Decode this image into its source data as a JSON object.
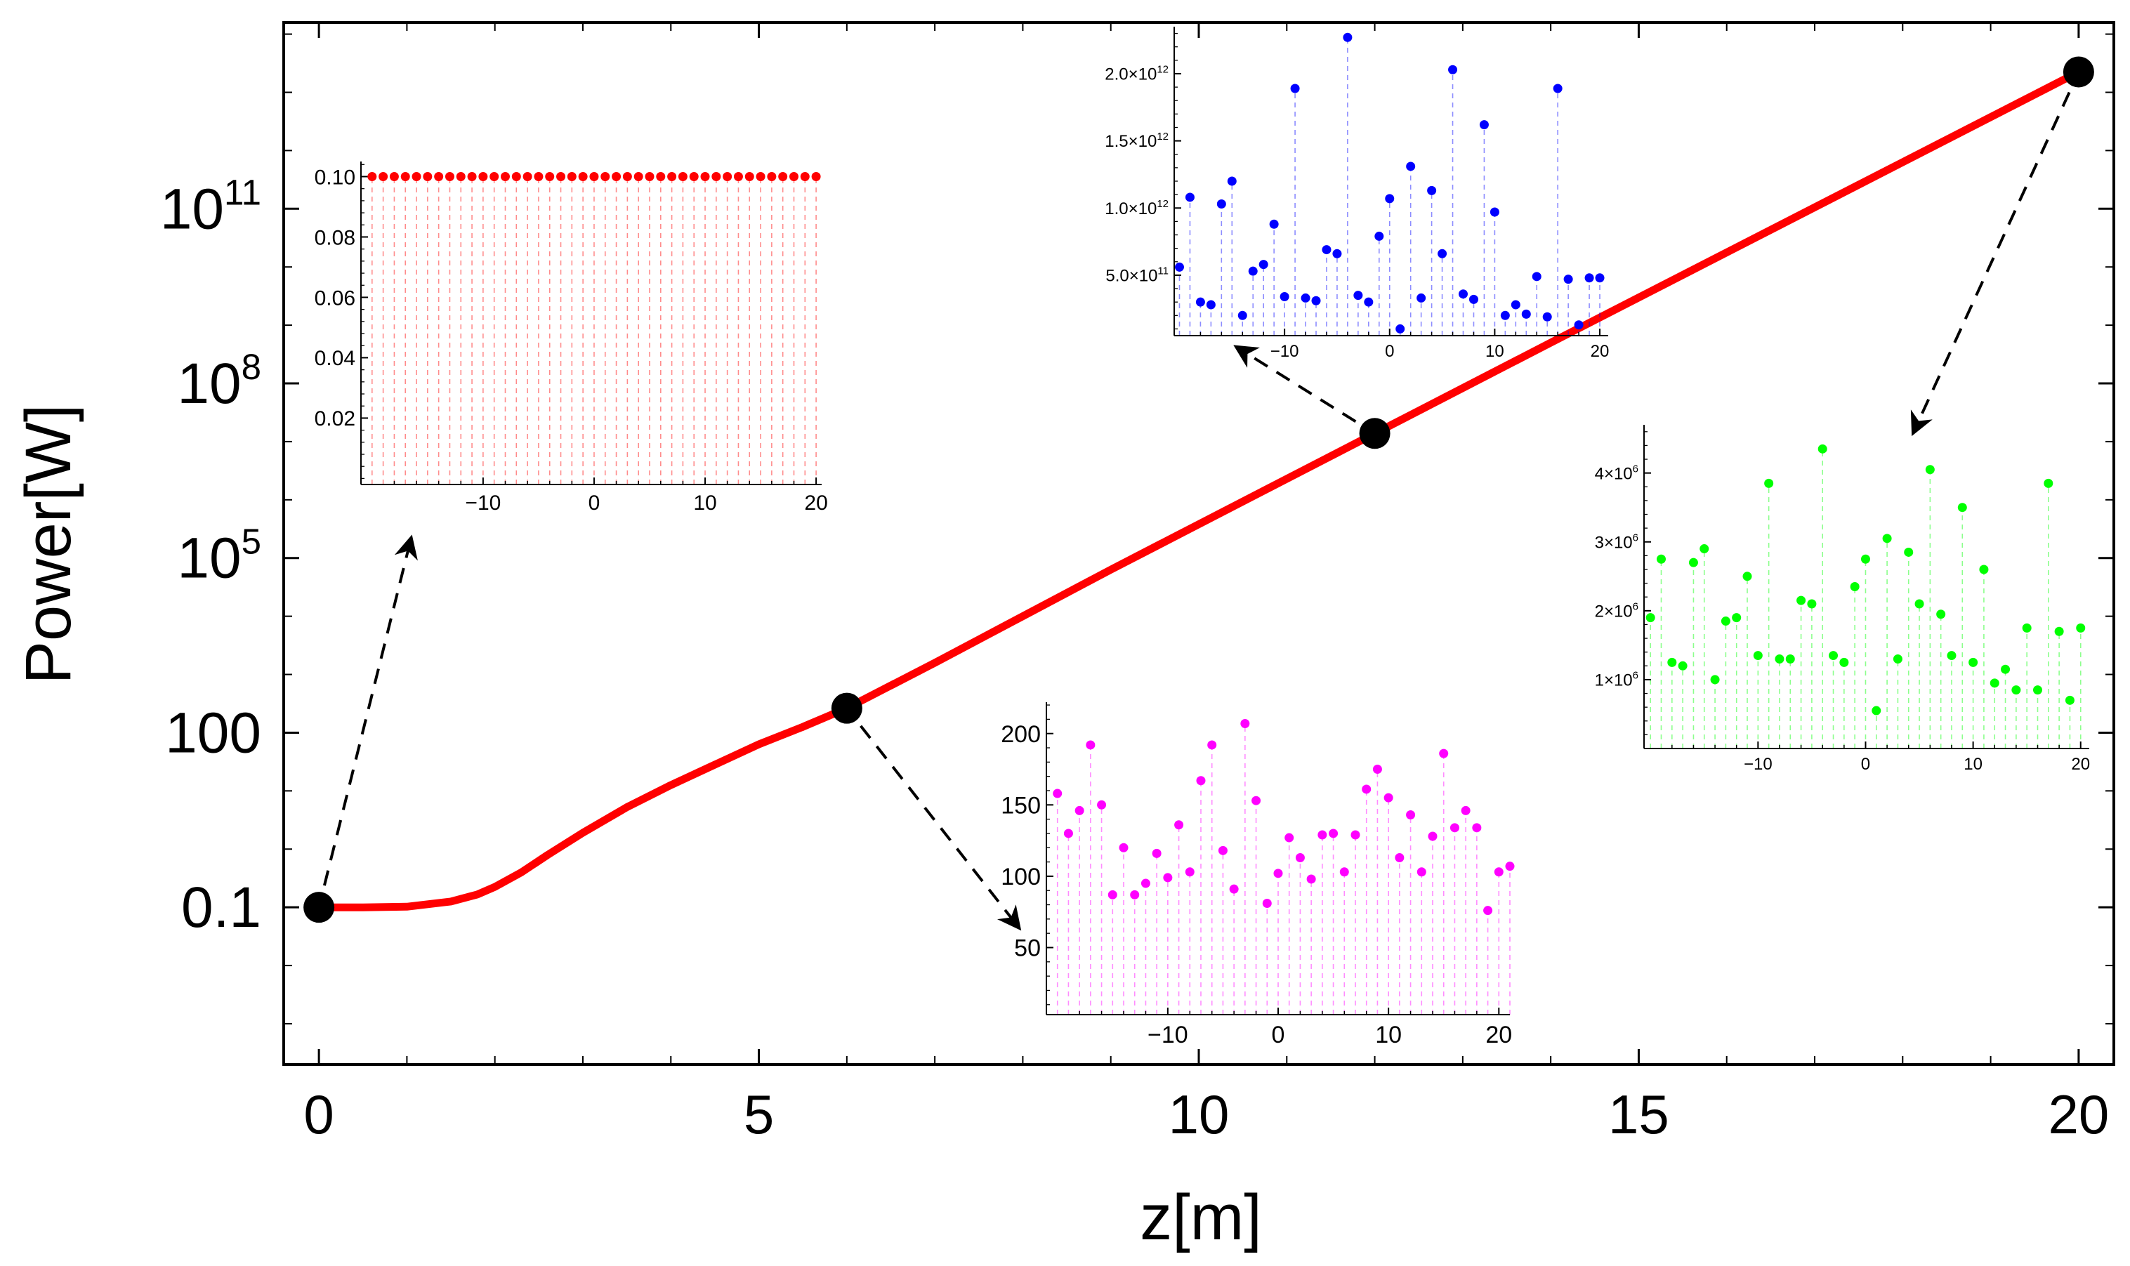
{
  "chart_data": [
    {
      "id": "main",
      "type": "line",
      "xlabel": "z[m]",
      "ylabel": "Power[W]",
      "xlim": [
        -0.4,
        20.4
      ],
      "ylim_log10": [
        -3.7,
        14.2
      ],
      "y_scale": "log",
      "x_ticks": [
        0,
        5,
        10,
        15,
        20
      ],
      "x_tick_labels": [
        "0",
        "5",
        "10",
        "15",
        "20"
      ],
      "y_ticks_log10": [
        -1,
        2,
        5,
        8,
        11
      ],
      "y_tick_labels": [
        {
          "base": "0.1",
          "exp": ""
        },
        {
          "base": "100",
          "exp": ""
        },
        {
          "base": "10",
          "exp": "5"
        },
        {
          "base": "10",
          "exp": "8"
        },
        {
          "base": "10",
          "exp": "11"
        }
      ],
      "color": "#ff0000",
      "series": [
        {
          "name": "power",
          "x": [
            0,
            0.5,
            1,
            1.5,
            1.8,
            2,
            2.3,
            2.6,
            3,
            3.5,
            4,
            4.5,
            5,
            5.5,
            6,
            7,
            8,
            9,
            10,
            12,
            14,
            16,
            18,
            20
          ],
          "log10_y": [
            -1,
            -1,
            -0.99,
            -0.9,
            -0.78,
            -0.65,
            -0.4,
            -0.1,
            0.28,
            0.72,
            1.1,
            1.45,
            1.8,
            2.1,
            2.42,
            3.2,
            4.0,
            4.8,
            5.58,
            7.14,
            8.7,
            10.25,
            11.8,
            13.35
          ]
        }
      ],
      "markers": [
        {
          "x": 0,
          "log10_y": -1
        },
        {
          "x": 6,
          "log10_y": 2.42
        },
        {
          "x": 12,
          "log10_y": 7.14
        },
        {
          "x": 20,
          "log10_y": 13.35
        }
      ]
    },
    {
      "id": "inset_red",
      "type": "scatter",
      "color": "#ff0000",
      "xlim": [
        -21,
        20.5
      ],
      "ylim": [
        -0.002,
        0.105
      ],
      "x_ticks": [
        -10,
        0,
        10,
        20
      ],
      "y_ticks": [
        0.02,
        0.04,
        0.06,
        0.08,
        0.1
      ],
      "y_tick_labels": [
        {
          "base": "0.02",
          "exp": ""
        },
        {
          "base": "0.04",
          "exp": ""
        },
        {
          "base": "0.06",
          "exp": ""
        },
        {
          "base": "0.08",
          "exp": ""
        },
        {
          "base": "0.10",
          "exp": ""
        }
      ],
      "x": [
        -20,
        -19,
        -18,
        -17,
        -16,
        -15,
        -14,
        -13,
        -12,
        -11,
        -10,
        -9,
        -8,
        -7,
        -6,
        -5,
        -4,
        -3,
        -2,
        -1,
        0,
        1,
        2,
        3,
        4,
        5,
        6,
        7,
        8,
        9,
        10,
        11,
        12,
        13,
        14,
        15,
        16,
        17,
        18,
        19,
        20
      ],
      "y": [
        0.1,
        0.1,
        0.1,
        0.1,
        0.1,
        0.1,
        0.1,
        0.1,
        0.1,
        0.1,
        0.1,
        0.1,
        0.1,
        0.1,
        0.1,
        0.1,
        0.1,
        0.1,
        0.1,
        0.1,
        0.1,
        0.1,
        0.1,
        0.1,
        0.1,
        0.1,
        0.1,
        0.1,
        0.1,
        0.1,
        0.1,
        0.1,
        0.1,
        0.1,
        0.1,
        0.1,
        0.1,
        0.1,
        0.1,
        0.1,
        0.1
      ]
    },
    {
      "id": "inset_magenta",
      "type": "scatter",
      "color": "#ff00ff",
      "xlim": [
        -21,
        21
      ],
      "ylim": [
        3,
        222
      ],
      "x_ticks": [
        -10,
        0,
        10,
        20
      ],
      "y_ticks": [
        50,
        100,
        150,
        200
      ],
      "y_tick_labels": [
        {
          "base": "50",
          "exp": ""
        },
        {
          "base": "100",
          "exp": ""
        },
        {
          "base": "150",
          "exp": ""
        },
        {
          "base": "200",
          "exp": ""
        }
      ],
      "x": [
        -20,
        -19,
        -18,
        -17,
        -16,
        -15,
        -14,
        -13,
        -12,
        -11,
        -10,
        -9,
        -8,
        -7,
        -6,
        -5,
        -4,
        -3,
        -2,
        -1,
        0,
        1,
        2,
        3,
        4,
        5,
        6,
        7,
        8,
        9,
        10,
        11,
        12,
        13,
        14,
        15,
        16,
        17,
        18,
        19,
        20,
        21
      ],
      "y": [
        158,
        130,
        146,
        192,
        150,
        87,
        120,
        87,
        95,
        116,
        99,
        136,
        103,
        167,
        192,
        118,
        91,
        207,
        153,
        81,
        102,
        127,
        113,
        98,
        129,
        130,
        103,
        129,
        161,
        175,
        155,
        113,
        143,
        103,
        128,
        186,
        134,
        146,
        134,
        76,
        103,
        107
      ]
    },
    {
      "id": "inset_blue",
      "type": "scatter",
      "color": "#0000ff",
      "xlim": [
        -20.5,
        20.8
      ],
      "ylim": [
        50000000000.0,
        2350000000000.0
      ],
      "x_ticks": [
        -10,
        0,
        10,
        20
      ],
      "y_ticks": [
        500000000000.0,
        1000000000000.0,
        1500000000000.0,
        2000000000000.0
      ],
      "y_tick_labels": [
        {
          "base": "5.0×10",
          "exp": "11"
        },
        {
          "base": "1.0×10",
          "exp": "12"
        },
        {
          "base": "1.5×10",
          "exp": "12"
        },
        {
          "base": "2.0×10",
          "exp": "12"
        }
      ],
      "x": [
        -20,
        -19,
        -18,
        -17,
        -16,
        -15,
        -14,
        -13,
        -12,
        -11,
        -10,
        -9,
        -8,
        -7,
        -6,
        -5,
        -4,
        -3,
        -2,
        -1,
        0,
        1,
        2,
        3,
        4,
        5,
        6,
        7,
        8,
        9,
        10,
        11,
        12,
        13,
        14,
        15,
        16,
        17,
        18,
        19,
        20
      ],
      "y": [
        560000000000.0,
        1080000000000.0,
        300000000000.0,
        280000000000.0,
        1030000000000.0,
        1200000000000.0,
        200000000000.0,
        530000000000.0,
        580000000000.0,
        880000000000.0,
        340000000000.0,
        1890000000000.0,
        330000000000.0,
        310000000000.0,
        690000000000.0,
        660000000000.0,
        2270000000000.0,
        350000000000.0,
        300000000000.0,
        790000000000.0,
        1070000000000.0,
        100000000000.0,
        1310000000000.0,
        330000000000.0,
        1130000000000.0,
        660000000000.0,
        2030000000000.0,
        360000000000.0,
        320000000000.0,
        1620000000000.0,
        970000000000.0,
        200000000000.0,
        280000000000.0,
        210000000000.0,
        490000000000.0,
        190000000000.0,
        1890000000000.0,
        470000000000.0,
        130000000000.0,
        480000000000.0,
        480000000000.0
      ]
    },
    {
      "id": "inset_green",
      "type": "scatter",
      "color": "#00ff00",
      "xlim": [
        -20.6,
        20.8
      ],
      "ylim": [
        0,
        4700000.0
      ],
      "x_ticks": [
        -10,
        0,
        10,
        20
      ],
      "y_ticks": [
        1000000.0,
        2000000.0,
        3000000.0,
        4000000.0
      ],
      "y_tick_labels": [
        {
          "base": "1×10",
          "exp": "6"
        },
        {
          "base": "2×10",
          "exp": "6"
        },
        {
          "base": "3×10",
          "exp": "6"
        },
        {
          "base": "4×10",
          "exp": "6"
        }
      ],
      "x": [
        -20,
        -19,
        -18,
        -17,
        -16,
        -15,
        -14,
        -13,
        -12,
        -11,
        -10,
        -9,
        -8,
        -7,
        -6,
        -5,
        -4,
        -3,
        -2,
        -1,
        0,
        1,
        2,
        3,
        4,
        5,
        6,
        7,
        8,
        9,
        10,
        11,
        12,
        13,
        14,
        15,
        16,
        17,
        18,
        19,
        20
      ],
      "y": [
        1900000.0,
        2750000.0,
        1250000.0,
        1200000.0,
        2700000.0,
        2900000.0,
        1000000.0,
        1850000.0,
        1900000.0,
        2500000.0,
        1350000.0,
        3850000.0,
        1300000.0,
        1300000.0,
        2150000.0,
        2100000.0,
        4350000.0,
        1350000.0,
        1250000.0,
        2350000.0,
        2750000.0,
        550000.0,
        3050000.0,
        1300000.0,
        2850000.0,
        2100000.0,
        4050000.0,
        1950000.0,
        1350000.0,
        3500000.0,
        1250000.0,
        2600000.0,
        950000.0,
        1150000.0,
        850000.0,
        1750000.0,
        850000.0,
        3850000.0,
        1700000.0,
        700000.0,
        1750000.0
      ]
    }
  ]
}
